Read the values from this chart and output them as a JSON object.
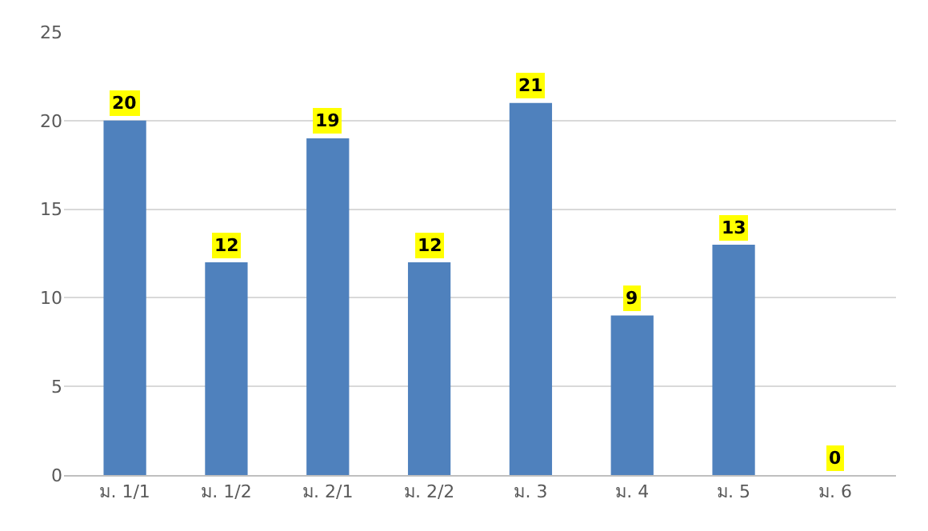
{
  "chart_data": {
    "type": "bar",
    "categories": [
      "ม. 1/1",
      "ม. 1/2",
      "ม. 2/1",
      "ม. 2/2",
      "ม. 3",
      "ม. 4",
      "ม. 5",
      "ม. 6"
    ],
    "values": [
      20,
      12,
      19,
      12,
      21,
      9,
      13,
      0
    ],
    "color": "#4f81bd",
    "ylim": [
      0,
      25
    ],
    "yticks": [
      0,
      5,
      10,
      15,
      20,
      25
    ],
    "grid": "y",
    "data_labels": true,
    "legend": false
  }
}
